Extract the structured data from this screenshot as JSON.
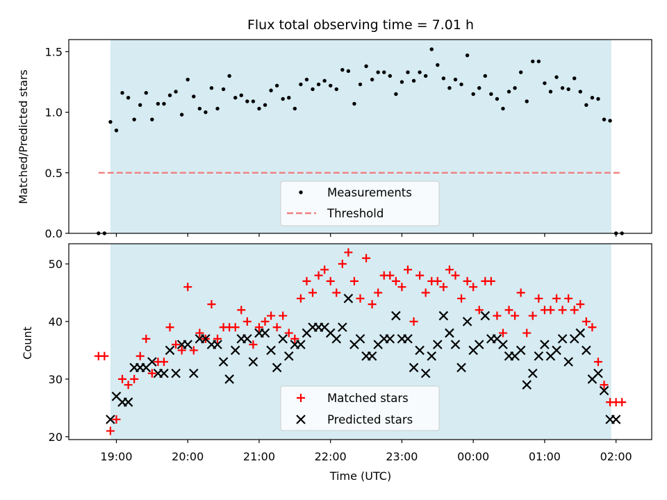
{
  "chart_data": [
    {
      "type": "scatter",
      "title": "Flux total observing time = 7.01 h",
      "xlabel": "",
      "ylabel": "Matched/Predicted stars",
      "xlim": [
        "18:20",
        "02:30"
      ],
      "ylim": [
        0,
        1.6
      ],
      "yticks": [
        "0.0",
        "0.5",
        "1.0",
        "1.5"
      ],
      "observing_window": [
        "18:55",
        "01:56"
      ],
      "threshold": 0.5,
      "grid": false,
      "legend_position": "lower-center",
      "colors": {
        "measurements": "#000000",
        "threshold": "#f08080",
        "window": "#add8e6"
      },
      "series": [
        {
          "name": "Measurements",
          "x": [
            "18:45",
            "18:50",
            "18:55",
            "19:00",
            "19:05",
            "19:10",
            "19:15",
            "19:20",
            "19:25",
            "19:30",
            "19:35",
            "19:40",
            "19:45",
            "19:50",
            "19:55",
            "20:00",
            "20:05",
            "20:10",
            "20:15",
            "20:20",
            "20:25",
            "20:30",
            "20:35",
            "20:40",
            "20:45",
            "20:50",
            "20:55",
            "21:00",
            "21:05",
            "21:10",
            "21:15",
            "21:20",
            "21:25",
            "21:30",
            "21:35",
            "21:40",
            "21:45",
            "21:50",
            "21:55",
            "22:00",
            "22:05",
            "22:10",
            "22:15",
            "22:20",
            "22:25",
            "22:30",
            "22:35",
            "22:40",
            "22:45",
            "22:50",
            "22:55",
            "23:00",
            "23:05",
            "23:10",
            "23:15",
            "23:20",
            "23:25",
            "23:30",
            "23:35",
            "23:40",
            "23:45",
            "23:50",
            "23:55",
            "00:00",
            "00:05",
            "00:10",
            "00:15",
            "00:20",
            "00:25",
            "00:30",
            "00:35",
            "00:40",
            "00:45",
            "00:50",
            "00:55",
            "01:00",
            "01:05",
            "01:10",
            "01:15",
            "01:20",
            "01:25",
            "01:30",
            "01:35",
            "01:40",
            "01:45",
            "01:50",
            "01:55",
            "02:00",
            "02:05"
          ],
          "y": [
            0.0,
            0.0,
            0.92,
            0.85,
            1.16,
            1.12,
            0.94,
            1.06,
            1.16,
            0.94,
            1.07,
            1.07,
            1.14,
            1.17,
            0.98,
            1.27,
            1.13,
            1.03,
            1.0,
            1.2,
            1.03,
            1.19,
            1.3,
            1.12,
            1.14,
            1.09,
            1.09,
            1.03,
            1.06,
            1.18,
            1.22,
            1.11,
            1.12,
            1.03,
            1.23,
            1.27,
            1.19,
            1.23,
            1.26,
            1.22,
            1.19,
            1.35,
            1.34,
            1.07,
            1.23,
            1.38,
            1.27,
            1.33,
            1.33,
            1.3,
            1.15,
            1.25,
            1.33,
            1.26,
            1.33,
            1.3,
            1.52,
            1.39,
            1.28,
            1.2,
            1.27,
            1.23,
            1.47,
            1.15,
            1.2,
            1.3,
            1.15,
            1.11,
            1.03,
            1.17,
            1.2,
            1.33,
            1.09,
            1.42,
            1.42,
            1.24,
            1.17,
            1.29,
            1.2,
            1.19,
            1.28,
            1.17,
            1.06,
            1.12,
            1.11,
            0.94,
            0.93,
            0.0,
            0.0
          ]
        }
      ],
      "legend": [
        "Measurements",
        "Threshold"
      ]
    },
    {
      "type": "scatter",
      "title": "",
      "xlabel": "Time (UTC)",
      "ylabel": "Count",
      "xlim": [
        "18:20",
        "02:30"
      ],
      "ylim": [
        19.5,
        53.5
      ],
      "xticks": [
        "19:00",
        "20:00",
        "21:00",
        "22:00",
        "23:00",
        "00:00",
        "01:00",
        "02:00"
      ],
      "yticks": [
        "20",
        "30",
        "40",
        "50"
      ],
      "observing_window": [
        "18:55",
        "01:56"
      ],
      "grid": false,
      "legend_position": "lower-center",
      "colors": {
        "matched": "#ff0000",
        "predicted": "#000000",
        "window": "#add8e6"
      },
      "series": [
        {
          "name": "Matched stars",
          "x": [
            "18:45",
            "18:50",
            "18:55",
            "19:00",
            "19:05",
            "19:10",
            "19:15",
            "19:20",
            "19:25",
            "19:30",
            "19:35",
            "19:40",
            "19:45",
            "19:50",
            "19:55",
            "20:00",
            "20:05",
            "20:10",
            "20:15",
            "20:20",
            "20:25",
            "20:30",
            "20:35",
            "20:40",
            "20:45",
            "20:50",
            "20:55",
            "21:00",
            "21:05",
            "21:10",
            "21:15",
            "21:20",
            "21:25",
            "21:30",
            "21:35",
            "21:40",
            "21:45",
            "21:50",
            "21:55",
            "22:00",
            "22:05",
            "22:10",
            "22:15",
            "22:20",
            "22:25",
            "22:30",
            "22:35",
            "22:40",
            "22:45",
            "22:50",
            "22:55",
            "23:00",
            "23:05",
            "23:10",
            "23:15",
            "23:20",
            "23:25",
            "23:30",
            "23:35",
            "23:40",
            "23:45",
            "23:50",
            "23:55",
            "00:00",
            "00:05",
            "00:10",
            "00:15",
            "00:20",
            "00:25",
            "00:30",
            "00:35",
            "00:40",
            "00:45",
            "00:50",
            "00:55",
            "01:00",
            "01:05",
            "01:10",
            "01:15",
            "01:20",
            "01:25",
            "01:30",
            "01:35",
            "01:40",
            "01:45",
            "01:50",
            "01:55",
            "02:00",
            "02:05"
          ],
          "y": [
            34,
            34,
            21,
            23,
            30,
            29,
            30,
            34,
            37,
            31,
            33,
            33,
            39,
            36,
            35,
            46,
            35,
            38,
            37,
            43,
            37,
            39,
            39,
            39,
            42,
            40,
            36,
            39,
            40,
            41,
            39,
            41,
            38,
            37,
            44,
            47,
            45,
            48,
            49,
            47,
            45,
            50,
            52,
            47,
            44,
            51,
            43,
            45,
            48,
            48,
            47,
            46,
            49,
            40,
            48,
            45,
            47,
            47,
            46,
            49,
            48,
            44,
            47,
            46,
            42,
            47,
            47,
            41,
            38,
            42,
            41,
            45,
            38,
            41,
            44,
            42,
            42,
            44,
            42,
            44,
            42,
            43,
            40,
            39,
            33,
            29,
            26,
            26,
            26
          ]
        },
        {
          "name": "Predicted stars",
          "x": [
            "18:55",
            "19:00",
            "19:05",
            "19:10",
            "19:15",
            "19:20",
            "19:25",
            "19:30",
            "19:35",
            "19:40",
            "19:45",
            "19:50",
            "19:55",
            "20:00",
            "20:05",
            "20:10",
            "20:15",
            "20:20",
            "20:25",
            "20:30",
            "20:35",
            "20:40",
            "20:45",
            "20:50",
            "20:55",
            "21:00",
            "21:05",
            "21:10",
            "21:15",
            "21:20",
            "21:25",
            "21:30",
            "21:35",
            "21:40",
            "21:45",
            "21:50",
            "21:55",
            "22:00",
            "22:05",
            "22:10",
            "22:15",
            "22:20",
            "22:25",
            "22:30",
            "22:35",
            "22:40",
            "22:45",
            "22:50",
            "22:55",
            "23:00",
            "23:05",
            "23:10",
            "23:15",
            "23:20",
            "23:25",
            "23:30",
            "23:35",
            "23:40",
            "23:45",
            "23:50",
            "23:55",
            "00:00",
            "00:05",
            "00:10",
            "00:15",
            "00:20",
            "00:25",
            "00:30",
            "00:35",
            "00:40",
            "00:45",
            "00:50",
            "00:55",
            "01:00",
            "01:05",
            "01:10",
            "01:15",
            "01:20",
            "01:25",
            "01:30",
            "01:35",
            "01:40",
            "01:45",
            "01:50",
            "01:55",
            "02:00"
          ],
          "y": [
            23,
            27,
            26,
            26,
            32,
            32,
            32,
            33,
            31,
            31,
            35,
            31,
            36,
            36,
            31,
            37,
            37,
            36,
            36,
            33,
            30,
            35,
            37,
            37,
            33,
            38,
            38,
            35,
            32,
            37,
            34,
            36,
            36,
            38,
            39,
            39,
            39,
            38,
            37,
            39,
            44,
            36,
            37,
            34,
            34,
            36,
            37,
            37,
            41,
            37,
            37,
            32,
            35,
            31,
            34,
            36,
            41,
            38,
            36,
            32,
            40,
            35,
            36,
            41,
            37,
            37,
            36,
            34,
            34,
            35,
            29,
            31,
            34,
            36,
            34,
            35,
            37,
            33,
            37,
            38,
            35,
            30,
            31,
            28,
            23,
            23
          ]
        }
      ],
      "legend": [
        "Matched stars",
        "Predicted stars"
      ]
    }
  ]
}
